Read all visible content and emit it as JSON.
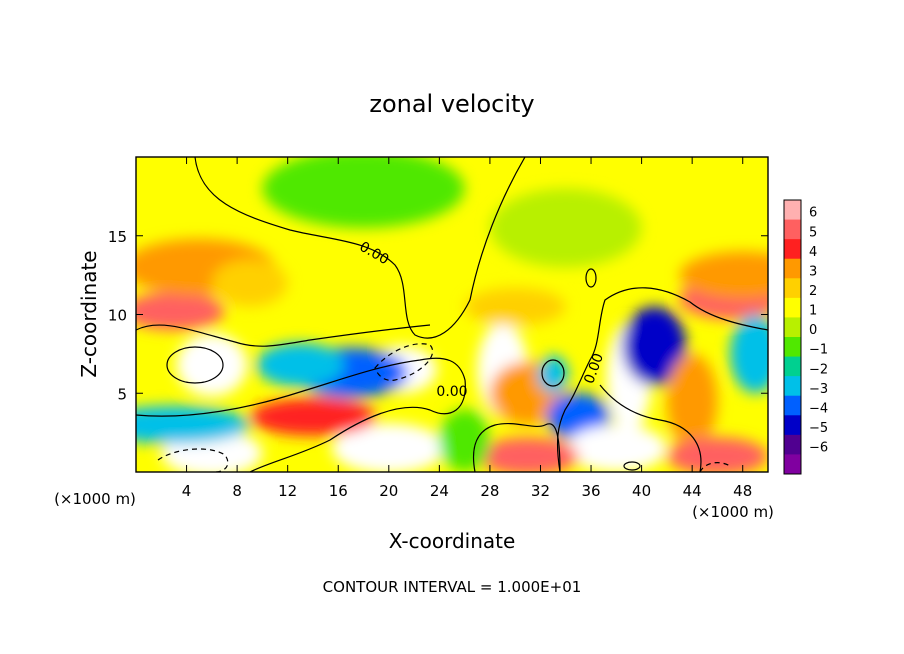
{
  "chart_data": {
    "type": "heatmap",
    "title": "zonal velocity",
    "xlabel": "X-coordinate",
    "ylabel": "Z-coordinate",
    "x_unit_left": "(×1000 m)",
    "x_unit_right": "(×1000 m)",
    "footer": "CONTOUR INTERVAL = 1.000E+01",
    "xlim": [
      0,
      50
    ],
    "ylim": [
      0,
      20
    ],
    "x_ticks": [
      4,
      8,
      12,
      16,
      20,
      24,
      28,
      32,
      36,
      40,
      44,
      48
    ],
    "y_ticks": [
      5,
      10,
      15
    ],
    "colorbar": {
      "levels": [
        6,
        5,
        4,
        3,
        2,
        1,
        0,
        -1,
        -2,
        -3,
        -4,
        -5,
        -6
      ],
      "colors": [
        "#ffb0b0",
        "#ff6060",
        "#ff2020",
        "#ff9900",
        "#ffd000",
        "#ffff00",
        "#b8f000",
        "#50e800",
        "#00d090",
        "#00c0e8",
        "#0060ff",
        "#0000c8",
        "#500090",
        "#8000a0"
      ]
    },
    "contour_labels": [
      "0.00",
      "0.00",
      "0.00"
    ],
    "background_value": 0.5,
    "features": [
      {
        "x": 6,
        "y": 6.8,
        "rx": 2.8,
        "ry": 2.0,
        "value": 9
      },
      {
        "x": 3,
        "y": 10.2,
        "rx": 4.0,
        "ry": 1.2,
        "value": 5
      },
      {
        "x": 5,
        "y": 13.0,
        "rx": 6.0,
        "ry": 1.8,
        "value": 3
      },
      {
        "x": 9,
        "y": 12.0,
        "rx": 3.0,
        "ry": 1.5,
        "value": 2
      },
      {
        "x": 21,
        "y": 6.5,
        "rx": 2.8,
        "ry": 1.5,
        "value": 9
      },
      {
        "x": 17,
        "y": 6.3,
        "rx": 4.5,
        "ry": 1.6,
        "value": -4
      },
      {
        "x": 13,
        "y": 6.8,
        "rx": 3.5,
        "ry": 1.4,
        "value": -3
      },
      {
        "x": 6,
        "y": 1.2,
        "rx": 4.0,
        "ry": 1.5,
        "value": 8
      },
      {
        "x": 3,
        "y": 3.0,
        "rx": 6.0,
        "ry": 1.2,
        "value": -3
      },
      {
        "x": 20,
        "y": 1.5,
        "rx": 4.5,
        "ry": 1.6,
        "value": 8
      },
      {
        "x": 14,
        "y": 3.5,
        "rx": 5.0,
        "ry": 1.2,
        "value": 4
      },
      {
        "x": 29,
        "y": 6.5,
        "rx": 2.0,
        "ry": 3.0,
        "value": 9
      },
      {
        "x": 31,
        "y": 5.0,
        "rx": 3.0,
        "ry": 2.0,
        "value": 3
      },
      {
        "x": 33,
        "y": 6.2,
        "rx": 1.2,
        "ry": 1.2,
        "value": -3
      },
      {
        "x": 35,
        "y": 3.5,
        "rx": 2.5,
        "ry": 1.5,
        "value": -4
      },
      {
        "x": 39,
        "y": 6.0,
        "rx": 1.8,
        "ry": 3.5,
        "value": 9
      },
      {
        "x": 41,
        "y": 8.0,
        "rx": 2.5,
        "ry": 2.5,
        "value": -5
      },
      {
        "x": 44,
        "y": 4.5,
        "rx": 2.0,
        "ry": 3.0,
        "value": 3
      },
      {
        "x": 38,
        "y": 1.5,
        "rx": 4.0,
        "ry": 1.5,
        "value": 8
      },
      {
        "x": 31,
        "y": 1.0,
        "rx": 4.0,
        "ry": 1.2,
        "value": 5
      },
      {
        "x": 46,
        "y": 1.0,
        "rx": 4.0,
        "ry": 1.2,
        "value": 5
      },
      {
        "x": 47,
        "y": 11.0,
        "rx": 4.0,
        "ry": 1.3,
        "value": 5
      },
      {
        "x": 48,
        "y": 12.5,
        "rx": 5.0,
        "ry": 1.5,
        "value": 3
      },
      {
        "x": 30,
        "y": 10.5,
        "rx": 4.0,
        "ry": 1.2,
        "value": 2
      },
      {
        "x": 18,
        "y": 18.0,
        "rx": 8.0,
        "ry": 2.5,
        "value": -1.5
      },
      {
        "x": 34,
        "y": 15.5,
        "rx": 6.0,
        "ry": 2.5,
        "value": -0.8
      },
      {
        "x": 49,
        "y": 7.5,
        "rx": 2.0,
        "ry": 2.5,
        "value": -3
      },
      {
        "x": 26,
        "y": 2.0,
        "rx": 2.0,
        "ry": 2.0,
        "value": -1
      }
    ]
  }
}
